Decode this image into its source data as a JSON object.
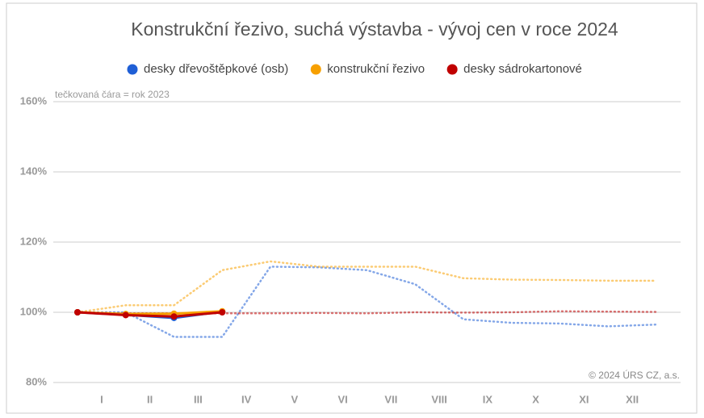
{
  "chart_data": {
    "type": "line",
    "title": "Konstrukční řezivo, suchá výstavba - vývoj cen v roce 2024",
    "annotations": [
      "tečkovaná čára = rok 2023",
      "© 2024 ÚRS CZ, a.s."
    ],
    "xtick_labels": [
      "I",
      "II",
      "III",
      "IV",
      "V",
      "VI",
      "VII",
      "VIII",
      "IX",
      "X",
      "XI",
      "XII"
    ],
    "ylim": [
      80,
      160
    ],
    "yticks": [
      {
        "value": 80,
        "label": "80%"
      },
      {
        "value": 100,
        "label": "100%"
      },
      {
        "value": 120,
        "label": "120%"
      },
      {
        "value": 140,
        "label": "140%"
      },
      {
        "value": 160,
        "label": "160%"
      }
    ],
    "grid": true,
    "legend": "top",
    "series": [
      {
        "style": "dotted",
        "color": "#1f5fd6",
        "values": [
          100,
          100,
          93,
          93,
          113,
          112.8,
          112,
          108,
          98,
          97,
          96.8,
          96,
          96.5
        ]
      },
      {
        "style": "dotted",
        "color": "#f7a000",
        "values": [
          100,
          102,
          102,
          112,
          114.5,
          113,
          113,
          113,
          109.7,
          109.3,
          109.2,
          109,
          109
        ]
      },
      {
        "style": "dotted",
        "color": "#c00000",
        "values": [
          100,
          99.7,
          99.7,
          99.7,
          99.7,
          99.8,
          99.7,
          100,
          99.9,
          100,
          100.3,
          100.2,
          100.1
        ]
      },
      {
        "name": "desky dřevoštěpkové (osb)",
        "style": "solid",
        "color": "#1f5fd6",
        "values": [
          100,
          99.3,
          98.4,
          100.2,
          null,
          null,
          null,
          null,
          null,
          null,
          null,
          null,
          null
        ]
      },
      {
        "name": "konstrukční řezivo",
        "style": "solid",
        "color": "#f7a000",
        "values": [
          100,
          99.5,
          99.6,
          100.3,
          null,
          null,
          null,
          null,
          null,
          null,
          null,
          null,
          null
        ]
      },
      {
        "name": "desky sádrokartonové",
        "style": "solid",
        "color": "#c00000",
        "values": [
          100,
          99.2,
          98.8,
          100,
          null,
          null,
          null,
          null,
          null,
          null,
          null,
          null,
          null
        ]
      }
    ]
  }
}
